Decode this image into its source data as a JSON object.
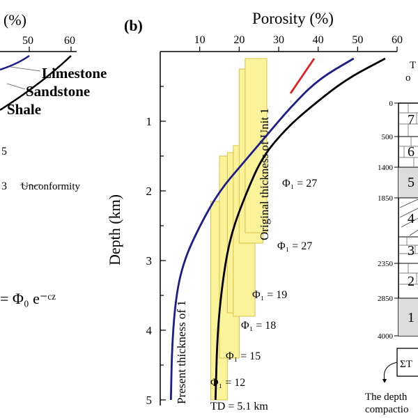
{
  "panel_b_label": "(b)",
  "left_panel": {
    "title_fragment": "(%)",
    "x_ticks": [
      "50",
      "60"
    ],
    "curve_labels": [
      "Limestone",
      "Sandstone",
      "Shale"
    ],
    "fragment_5": "5",
    "fragment_3": "3",
    "unconformity": "Unconformity",
    "equation": "= Φ₀ e⁻ᶜᶻ"
  },
  "right_panel": {
    "title_fragment": "T",
    "title_fragment2": "o",
    "depth_ticks": [
      "0",
      "500",
      "1400",
      "1850",
      "2350",
      "2850",
      "4000"
    ],
    "unit_numbers": [
      "7",
      "6",
      "5",
      "4",
      "3",
      "2",
      "1"
    ],
    "sigma_box": "ΣT",
    "caption_line1": "The depth",
    "caption_line2": "compactio"
  },
  "chart_data": {
    "type": "line",
    "title": "Porosity (%)",
    "xlabel": "Porosity (%)",
    "ylabel": "Depth (km)",
    "x_ticks": [
      10,
      20,
      30,
      40,
      50,
      60
    ],
    "y_ticks": [
      1,
      2,
      3,
      4,
      5
    ],
    "xlim": [
      0,
      60
    ],
    "ylim": [
      0,
      5.1
    ],
    "series": [
      {
        "color": "#000000",
        "points": [
          [
            57,
            0.1
          ],
          [
            47,
            0.4
          ],
          [
            38,
            0.8
          ],
          [
            32,
            1.1
          ],
          [
            26,
            1.5
          ],
          [
            22,
            2.0
          ],
          [
            18,
            2.6
          ],
          [
            16,
            3.2
          ],
          [
            14.5,
            4.0
          ],
          [
            14,
            5.0
          ]
        ]
      },
      {
        "color": "#1c1c8c",
        "points": [
          [
            49,
            0.1
          ],
          [
            40,
            0.4
          ],
          [
            33,
            0.8
          ],
          [
            27,
            1.2
          ],
          [
            21,
            1.6
          ],
          [
            15,
            2.0
          ],
          [
            10,
            2.5
          ],
          [
            6,
            3.0
          ],
          [
            4,
            3.5
          ],
          [
            3,
            4.2
          ],
          [
            2.7,
            5.0
          ]
        ]
      },
      {
        "color": "#e02020",
        "points": [
          [
            39,
            0.1
          ],
          [
            33,
            0.6
          ]
        ]
      }
    ],
    "boxes": [
      {
        "x0": 12.8,
        "x1": 17,
        "ytop": 2.15,
        "ybot": 5.0
      },
      {
        "x0": 15,
        "x1": 20,
        "ytop": 1.5,
        "ybot": 4.4
      },
      {
        "x0": 17,
        "x1": 22,
        "ytop": 1.45,
        "ybot": 3.75
      },
      {
        "x0": 18.5,
        "x1": 24,
        "ytop": 1.35,
        "ybot": 3.8
      },
      {
        "x0": 20,
        "x1": 26,
        "ytop": 0.25,
        "ybot": 2.75
      },
      {
        "x0": 21.5,
        "x1": 27,
        "ytop": 0.1,
        "ybot": 2.6
      }
    ],
    "annotations": {
      "unit1_original": "Original thickness of Unit 1",
      "unit1_present": "Present thickness of 1",
      "phi_labels": [
        "Φ₁ = 27",
        "Φ₁ = 27",
        "Φ₁ = 19",
        "Φ₁ = 18",
        "Φ₁ = 15",
        "Φ₁ = 12"
      ],
      "td": "TD = 5.1 km"
    }
  }
}
